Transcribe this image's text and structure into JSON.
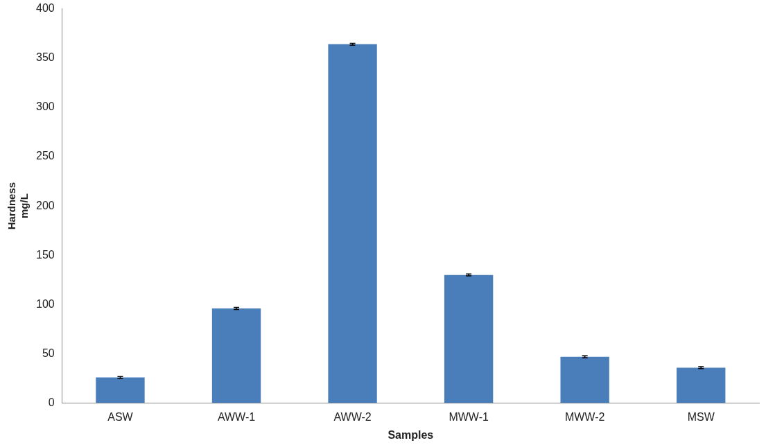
{
  "chart_data": {
    "type": "bar",
    "xlabel": "Samples",
    "ylabel": "Hardness mg/L",
    "categories": [
      "ASW",
      "AWW-1",
      "AWW-2",
      "MWW-1",
      "MWW-2",
      "MSW"
    ],
    "values": [
      26,
      96,
      364,
      130,
      47,
      36
    ],
    "errors": [
      1,
      1,
      1,
      1,
      1,
      1
    ],
    "color": "#4a7ebb",
    "ylim": [
      0,
      400
    ],
    "yticks": [
      0,
      50,
      100,
      150,
      200,
      250,
      300,
      350,
      400
    ],
    "grid": false,
    "legend": false
  }
}
